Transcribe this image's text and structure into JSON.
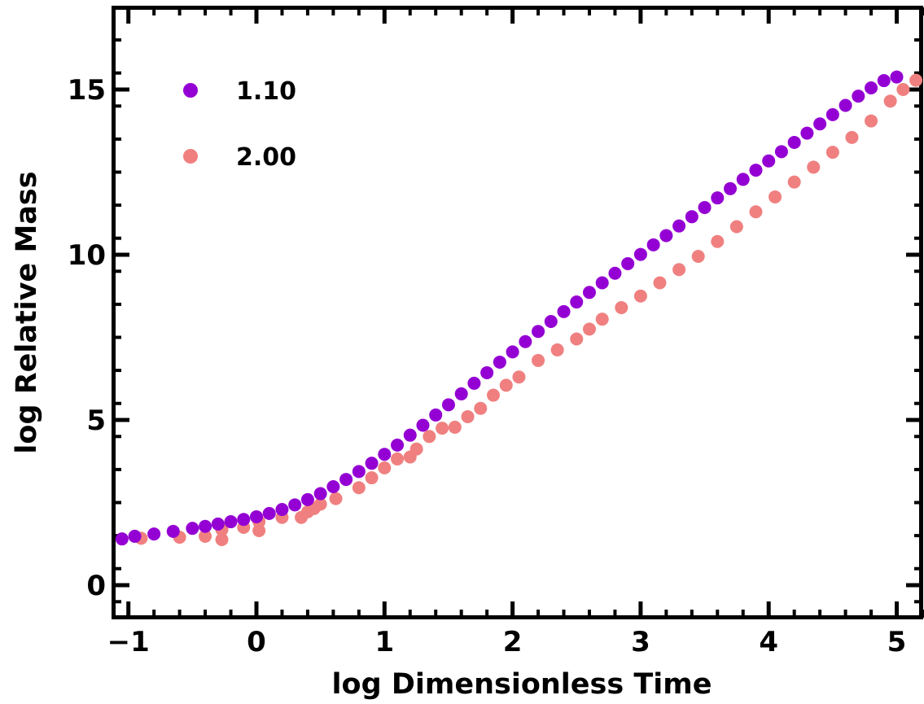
{
  "chart_data": {
    "type": "scatter",
    "title": "",
    "xlabel": "log Dimensionless Time",
    "ylabel": "log Relative Mass",
    "xlim": [
      -1.1,
      5.2
    ],
    "ylim": [
      -1.0,
      17.5
    ],
    "xticks": [
      -1,
      0,
      1,
      2,
      3,
      4,
      5
    ],
    "xtick_labels": [
      "−1",
      "0",
      "1",
      "2",
      "3",
      "4",
      "5"
    ],
    "yticks": [
      0,
      5,
      10,
      15
    ],
    "ytick_labels": [
      "0",
      "5",
      "10",
      "15"
    ],
    "grid": false,
    "legend_position": "top-left",
    "series": [
      {
        "name": "1.10",
        "color": "#9400D3",
        "points": [
          [
            -1.05,
            1.4
          ],
          [
            -0.95,
            1.48
          ],
          [
            -0.8,
            1.55
          ],
          [
            -0.65,
            1.63
          ],
          [
            -0.5,
            1.72
          ],
          [
            -0.4,
            1.78
          ],
          [
            -0.3,
            1.85
          ],
          [
            -0.2,
            1.92
          ],
          [
            -0.1,
            1.99
          ],
          [
            0.0,
            2.07
          ],
          [
            0.1,
            2.17
          ],
          [
            0.2,
            2.29
          ],
          [
            0.3,
            2.43
          ],
          [
            0.4,
            2.59
          ],
          [
            0.5,
            2.77
          ],
          [
            0.6,
            2.98
          ],
          [
            0.7,
            3.2
          ],
          [
            0.8,
            3.44
          ],
          [
            0.9,
            3.69
          ],
          [
            1.0,
            3.96
          ],
          [
            1.1,
            4.24
          ],
          [
            1.2,
            4.54
          ],
          [
            1.3,
            4.84
          ],
          [
            1.4,
            5.15
          ],
          [
            1.5,
            5.46
          ],
          [
            1.6,
            5.79
          ],
          [
            1.7,
            6.11
          ],
          [
            1.8,
            6.43
          ],
          [
            1.9,
            6.75
          ],
          [
            2.0,
            7.06
          ],
          [
            2.1,
            7.37
          ],
          [
            2.2,
            7.68
          ],
          [
            2.3,
            7.98
          ],
          [
            2.4,
            8.28
          ],
          [
            2.5,
            8.57
          ],
          [
            2.6,
            8.86
          ],
          [
            2.7,
            9.15
          ],
          [
            2.8,
            9.44
          ],
          [
            2.9,
            9.73
          ],
          [
            3.0,
            10.01
          ],
          [
            3.1,
            10.3
          ],
          [
            3.2,
            10.58
          ],
          [
            3.3,
            10.87
          ],
          [
            3.4,
            11.15
          ],
          [
            3.5,
            11.43
          ],
          [
            3.6,
            11.72
          ],
          [
            3.7,
            12.0
          ],
          [
            3.8,
            12.28
          ],
          [
            3.9,
            12.56
          ],
          [
            4.0,
            12.84
          ],
          [
            4.1,
            13.12
          ],
          [
            4.2,
            13.4
          ],
          [
            4.3,
            13.68
          ],
          [
            4.4,
            13.96
          ],
          [
            4.5,
            14.24
          ],
          [
            4.6,
            14.52
          ],
          [
            4.7,
            14.8
          ],
          [
            4.8,
            15.05
          ],
          [
            4.9,
            15.27
          ],
          [
            5.0,
            15.38
          ]
        ]
      },
      {
        "name": "2.00",
        "color": "#F08080",
        "points": [
          [
            -0.9,
            1.42
          ],
          [
            -0.6,
            1.45
          ],
          [
            -0.4,
            1.48
          ],
          [
            -0.27,
            1.38
          ],
          [
            -0.27,
            1.68
          ],
          [
            -0.1,
            1.75
          ],
          [
            0.02,
            1.65
          ],
          [
            0.02,
            1.92
          ],
          [
            0.2,
            2.05
          ],
          [
            0.35,
            2.05
          ],
          [
            0.4,
            2.22
          ],
          [
            0.45,
            2.32
          ],
          [
            0.5,
            2.45
          ],
          [
            0.62,
            2.62
          ],
          [
            0.8,
            2.95
          ],
          [
            0.9,
            3.25
          ],
          [
            1.0,
            3.55
          ],
          [
            1.1,
            3.82
          ],
          [
            1.2,
            3.88
          ],
          [
            1.25,
            4.12
          ],
          [
            1.35,
            4.5
          ],
          [
            1.45,
            4.75
          ],
          [
            1.55,
            4.78
          ],
          [
            1.65,
            5.1
          ],
          [
            1.75,
            5.35
          ],
          [
            1.85,
            5.75
          ],
          [
            1.95,
            6.05
          ],
          [
            2.05,
            6.3
          ],
          [
            2.2,
            6.8
          ],
          [
            2.35,
            7.12
          ],
          [
            2.5,
            7.45
          ],
          [
            2.6,
            7.75
          ],
          [
            2.7,
            8.05
          ],
          [
            2.85,
            8.4
          ],
          [
            3.0,
            8.75
          ],
          [
            3.15,
            9.15
          ],
          [
            3.3,
            9.55
          ],
          [
            3.45,
            9.95
          ],
          [
            3.6,
            10.4
          ],
          [
            3.75,
            10.85
          ],
          [
            3.9,
            11.3
          ],
          [
            4.05,
            11.75
          ],
          [
            4.2,
            12.2
          ],
          [
            4.35,
            12.65
          ],
          [
            4.5,
            13.1
          ],
          [
            4.65,
            13.55
          ],
          [
            4.8,
            14.05
          ],
          [
            4.95,
            14.65
          ],
          [
            5.05,
            15.0
          ],
          [
            5.15,
            15.28
          ]
        ]
      }
    ]
  }
}
